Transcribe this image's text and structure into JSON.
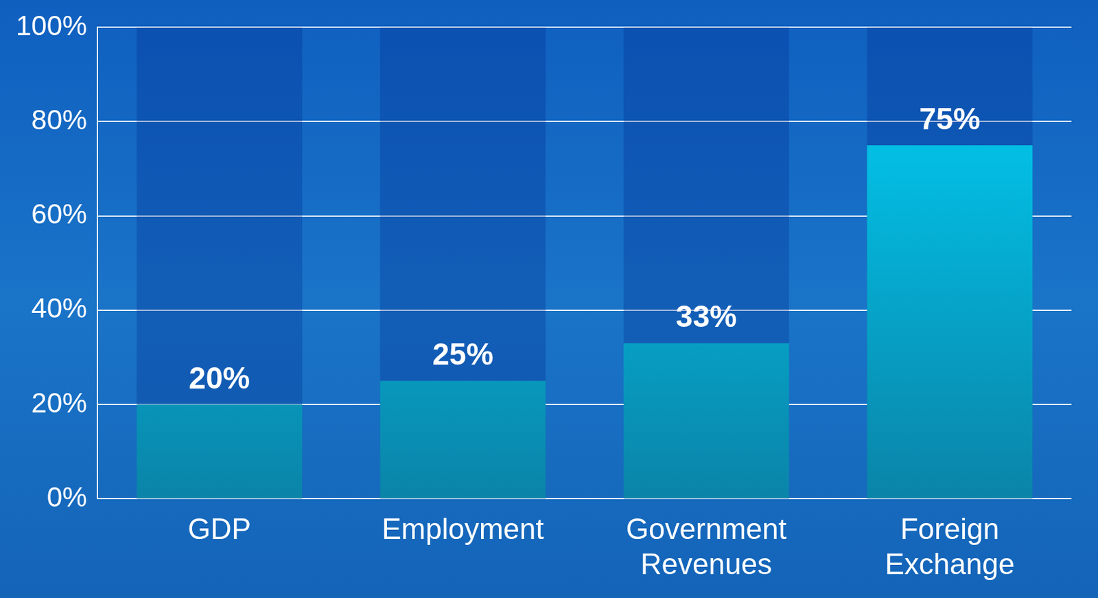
{
  "chart_data": {
    "type": "bar",
    "categories": [
      "GDP",
      "Employment",
      "Government Revenues",
      "Foreign Exchange"
    ],
    "values": [
      20,
      25,
      33,
      75
    ],
    "value_labels": [
      "20%",
      "25%",
      "33%",
      "75%"
    ],
    "data_labels": true,
    "color": "#00d2f8",
    "ylim": [
      0,
      100
    ],
    "yticks": [
      {
        "value": 0,
        "label": "0%"
      },
      {
        "value": 20,
        "label": "20%"
      },
      {
        "value": 40,
        "label": "40%"
      },
      {
        "value": 60,
        "label": "60%"
      },
      {
        "value": 80,
        "label": "80%"
      },
      {
        "value": 100,
        "label": "100%"
      }
    ],
    "grid": true
  }
}
